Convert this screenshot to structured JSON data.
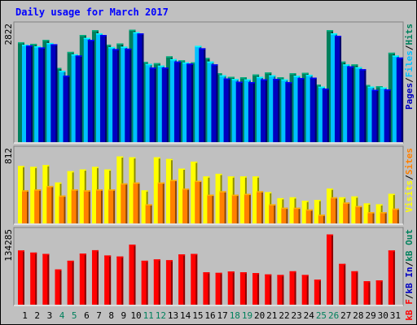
{
  "chart_data": {
    "type": "bar",
    "title": "Daily usage for March 2017",
    "days": [
      "1",
      "2",
      "3",
      "4",
      "5",
      "6",
      "7",
      "8",
      "9",
      "10",
      "11",
      "12",
      "13",
      "14",
      "15",
      "16",
      "17",
      "18",
      "19",
      "20",
      "21",
      "22",
      "23",
      "24",
      "25",
      "26",
      "27",
      "28",
      "29",
      "30",
      "31"
    ],
    "weekend_days": [
      "4",
      "5",
      "11",
      "12",
      "18",
      "19",
      "25",
      "26"
    ],
    "panels": [
      {
        "name": "hits",
        "max_label": "2822",
        "ymax": 2822,
        "right_label": [
          "Pages",
          "/",
          "Files",
          "/",
          "Hits"
        ],
        "series": [
          {
            "name": "Hits",
            "color": "#00805c",
            "values": [
              2480,
              2440,
              2540,
              1840,
              2240,
              2660,
              2780,
              2420,
              2450,
              2790,
              1990,
              1960,
              2130,
              2030,
              1980,
              2090,
              1710,
              1620,
              1610,
              1680,
              1730,
              1610,
              1710,
              1720,
              1430,
              2780,
              2000,
              1930,
              1420,
              1390,
              2220
            ]
          },
          {
            "name": "Files",
            "color": "#00c0ff",
            "values": [
              2420,
              2380,
              2460,
              1770,
              2180,
              2590,
              2700,
              2360,
              2370,
              2730,
              1940,
              1900,
              2060,
              1980,
              2390,
              2000,
              1660,
              1570,
              1560,
              1620,
              1660,
              1560,
              1650,
              1670,
              1380,
              2700,
              1930,
              1860,
              1380,
              1360,
              2150
            ]
          },
          {
            "name": "Pages",
            "color": "#0000c0",
            "values": [
              2400,
              2350,
              2430,
              1650,
              2150,
              2540,
              2660,
              2310,
              2320,
              2700,
              1850,
              1850,
              2000,
              1950,
              2330,
              1930,
              1580,
              1500,
              1490,
              1560,
              1570,
              1490,
              1590,
              1600,
              1330,
              2640,
              1880,
              1810,
              1300,
              1310,
              2100
            ]
          }
        ]
      },
      {
        "name": "visits",
        "max_label": "812",
        "ymax": 812,
        "right_label": [
          "Visits",
          "/",
          "Sites"
        ],
        "series": [
          {
            "name": "Visits",
            "color": "#ffff00",
            "values": [
              660,
              650,
              670,
              470,
              600,
              620,
              650,
              620,
              770,
              760,
              380,
              760,
              740,
              630,
              710,
              540,
              570,
              540,
              540,
              540,
              360,
              290,
              300,
              260,
              270,
              400,
              300,
              310,
              230,
              220,
              340
            ]
          },
          {
            "name": "Sites",
            "color": "#ff8000",
            "values": [
              380,
              390,
              430,
              320,
              390,
              380,
              390,
              390,
              460,
              470,
              220,
              470,
              500,
              400,
              490,
              330,
              370,
              330,
              340,
              370,
              220,
              180,
              180,
              160,
              100,
              300,
              240,
              200,
              130,
              130,
              170
            ]
          }
        ]
      },
      {
        "name": "kbytes",
        "max_label": "134285",
        "ymax": 134285,
        "right_label": [
          "kB F",
          "/",
          "kB In",
          "/",
          "kB Out"
        ],
        "series": [
          {
            "name": "kB F",
            "color": "#ff0000",
            "values": [
              103000,
              99000,
              96500,
              67000,
              83500,
              97000,
              103500,
              93500,
              91500,
              114000,
              83500,
              86000,
              84500,
              95500,
              96500,
              61500,
              60500,
              63000,
              61500,
              60000,
              57500,
              56500,
              63500,
              56500,
              47500,
              133500,
              77500,
              63500,
              44500,
              46000,
              103000
            ]
          }
        ]
      }
    ]
  }
}
